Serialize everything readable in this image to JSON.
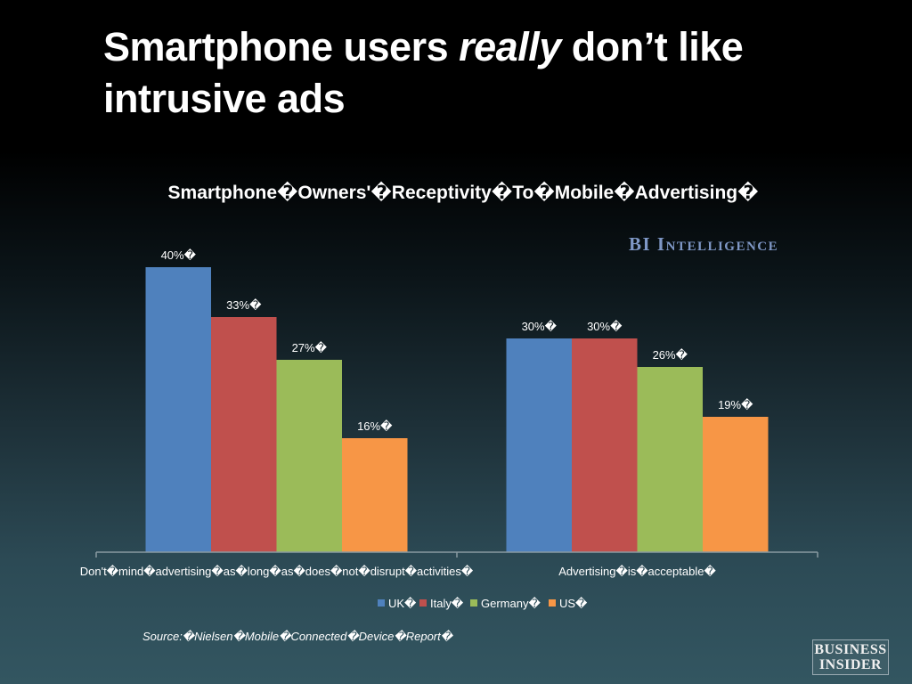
{
  "slide": {
    "title_prefix": "Smartphone users ",
    "title_emphasis": "really",
    "title_suffix": " don’t like intrusive ads"
  },
  "watermark": "BI Intelligence",
  "source": "Source:�Nielsen�Mobile�Connected�Device�Report�",
  "logo": {
    "line1": "BUSINESS",
    "line2": "INSIDER"
  },
  "colors": {
    "UK": "#4f81bd",
    "Italy": "#c0504d",
    "Germany": "#9bbb59",
    "US": "#f79646"
  },
  "chart_data": {
    "type": "bar",
    "title": "Smartphone�Owners'�Receptivity�To�Mobile�Advertising�",
    "categories": [
      "Don't�mind�advertising�as�long�as�does�not�disrupt�activities�",
      "Advertising�is�acceptable�"
    ],
    "series": [
      {
        "name": "UK�",
        "key": "UK",
        "values": [
          40,
          30
        ],
        "labels": [
          "40%�",
          "30%�"
        ]
      },
      {
        "name": "Italy�",
        "key": "Italy",
        "values": [
          33,
          30
        ],
        "labels": [
          "33%�",
          "30%�"
        ]
      },
      {
        "name": "Germany�",
        "key": "Germany",
        "values": [
          27,
          26
        ],
        "labels": [
          "27%�",
          "26%�"
        ]
      },
      {
        "name": "US�",
        "key": "US",
        "values": [
          16,
          19
        ],
        "labels": [
          "16%�",
          "19%�"
        ]
      }
    ],
    "ylim": [
      0,
      45
    ],
    "xlabel": "",
    "ylabel": "",
    "grid": false,
    "legend": "bottom"
  }
}
